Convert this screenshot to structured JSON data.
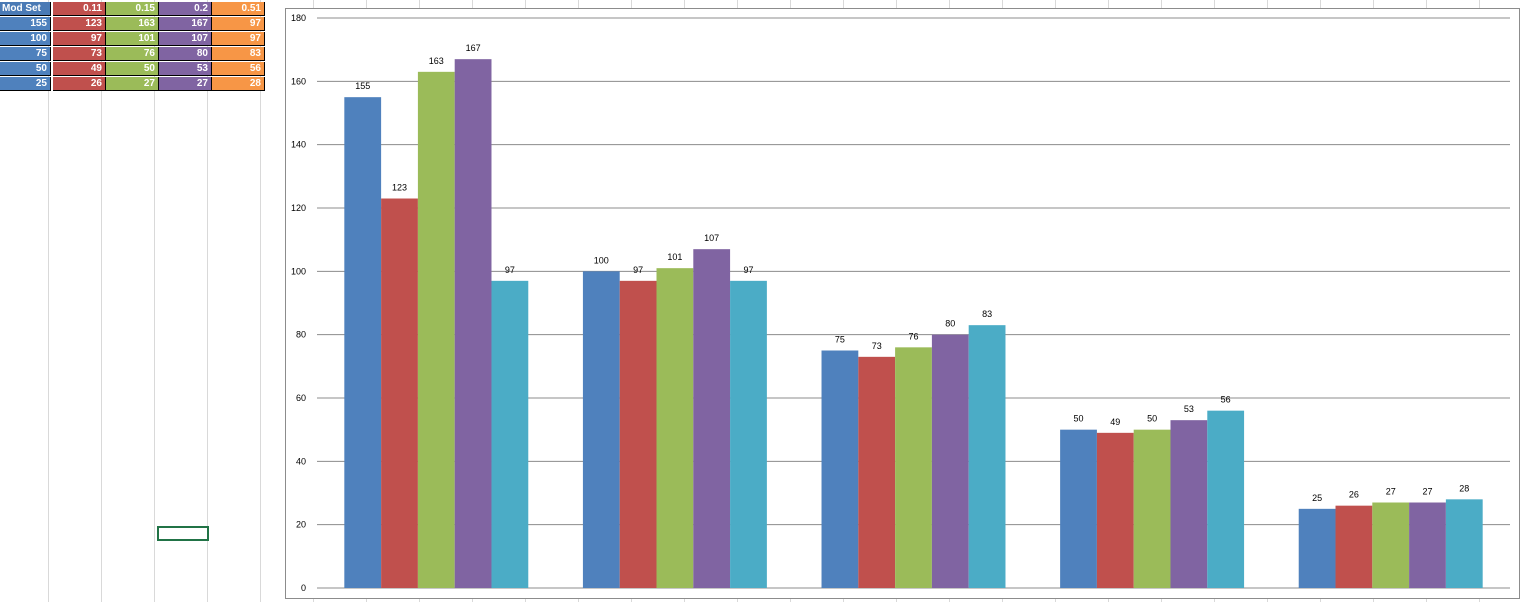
{
  "table": {
    "header": [
      "Mod Set",
      "0.11",
      "0.15",
      "0.2",
      "0.51"
    ],
    "rows": [
      [
        155,
        123,
        163,
        167,
        97
      ],
      [
        100,
        97,
        101,
        107,
        97
      ],
      [
        75,
        73,
        76,
        80,
        83
      ],
      [
        50,
        49,
        50,
        53,
        56
      ],
      [
        25,
        26,
        27,
        27,
        28
      ]
    ]
  },
  "chart_data": {
    "type": "bar",
    "series": [
      {
        "color": "#4f81bd",
        "values": [
          155,
          100,
          75,
          50,
          25
        ]
      },
      {
        "color": "#c0504d",
        "values": [
          123,
          97,
          73,
          49,
          26
        ]
      },
      {
        "color": "#9bbb59",
        "values": [
          163,
          101,
          76,
          50,
          27
        ]
      },
      {
        "color": "#8064a2",
        "values": [
          167,
          107,
          80,
          53,
          27
        ]
      },
      {
        "color": "#4bacc6",
        "values": [
          97,
          97,
          83,
          56,
          28
        ]
      }
    ],
    "ylim": [
      0,
      180
    ],
    "yticks": [
      0,
      20,
      40,
      60,
      80,
      100,
      120,
      140,
      160,
      180
    ],
    "grid": true
  }
}
